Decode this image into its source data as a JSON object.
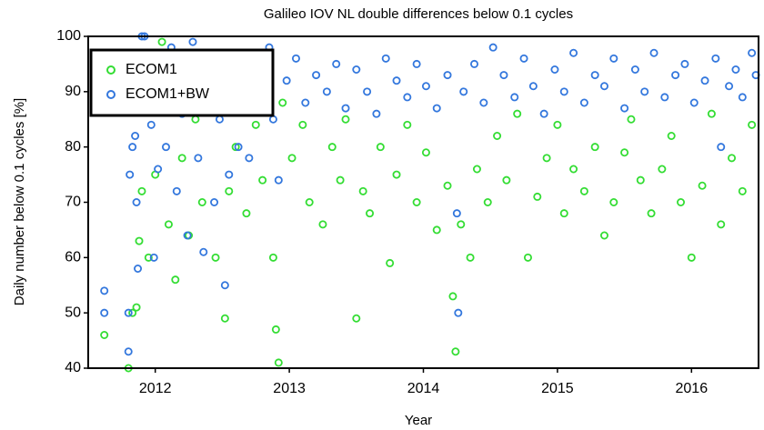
{
  "chart_data": {
    "type": "scatter",
    "title": "Galileo IOV NL double differences below 0.1 cycles",
    "x_label": "Year",
    "y_label": "Daily number below 0.1 cycles [%]",
    "xlim": [
      2012,
      2017
    ],
    "xticks": [
      {
        "value": 2012.5,
        "label": "2012"
      },
      {
        "value": 2013.5,
        "label": "2013"
      },
      {
        "value": 2014.5,
        "label": "2014"
      },
      {
        "value": 2015.5,
        "label": "2015"
      },
      {
        "value": 2016.5,
        "label": "2016"
      }
    ],
    "ylim": [
      40,
      100
    ],
    "yticks": [
      40,
      50,
      60,
      70,
      80,
      90,
      100
    ],
    "grid": false,
    "legend": "top-left",
    "series": [
      {
        "name": "ECOM1",
        "color": "#33dd33",
        "x": [
          2012.12,
          2012.3,
          2012.33,
          2012.36,
          2012.38,
          2012.4,
          2012.45,
          2012.5,
          2012.55,
          2012.6,
          2012.65,
          2012.7,
          2012.75,
          2012.8,
          2012.85,
          2012.95,
          2013.02,
          2013.05,
          2013.1,
          2013.18,
          2013.25,
          2013.3,
          2013.38,
          2013.4,
          2013.42,
          2013.45,
          2013.52,
          2013.6,
          2013.65,
          2013.75,
          2013.82,
          2013.88,
          2013.92,
          2014.0,
          2014.05,
          2014.1,
          2014.18,
          2014.25,
          2014.3,
          2014.38,
          2014.45,
          2014.52,
          2014.6,
          2014.68,
          2014.72,
          2014.74,
          2014.78,
          2014.85,
          2014.9,
          2014.98,
          2015.05,
          2015.12,
          2015.2,
          2015.28,
          2015.35,
          2015.42,
          2015.5,
          2015.55,
          2015.62,
          2015.7,
          2015.78,
          2015.85,
          2015.92,
          2016.0,
          2016.05,
          2016.12,
          2016.2,
          2016.28,
          2016.35,
          2016.42,
          2016.5,
          2016.58,
          2016.65,
          2016.72,
          2016.8,
          2016.88,
          2016.95
        ],
        "values": [
          46,
          40,
          50,
          51,
          63,
          72,
          60,
          75,
          99,
          66,
          56,
          78,
          64,
          85,
          70,
          60,
          49,
          72,
          80,
          68,
          84,
          74,
          60,
          47,
          41,
          88,
          78,
          84,
          70,
          66,
          80,
          74,
          85,
          49,
          72,
          68,
          80,
          59,
          75,
          84,
          70,
          79,
          65,
          73,
          53,
          43,
          66,
          60,
          76,
          70,
          82,
          74,
          86,
          60,
          71,
          78,
          84,
          68,
          76,
          72,
          80,
          64,
          70,
          79,
          85,
          74,
          68,
          76,
          82,
          70,
          60,
          73,
          86,
          66,
          78,
          72,
          84
        ]
      },
      {
        "name": "ECOM1+BW",
        "color": "#3377dd",
        "x": [
          2012.12,
          2012.12,
          2012.3,
          2012.3,
          2012.31,
          2012.33,
          2012.35,
          2012.36,
          2012.37,
          2012.4,
          2012.42,
          2012.44,
          2012.45,
          2012.47,
          2012.49,
          2012.52,
          2012.55,
          2012.58,
          2012.62,
          2012.66,
          2012.7,
          2012.74,
          2012.78,
          2012.82,
          2012.86,
          2012.9,
          2012.94,
          2012.98,
          2013.02,
          2013.05,
          2013.08,
          2013.12,
          2013.16,
          2013.2,
          2013.25,
          2013.3,
          2013.35,
          2013.38,
          2013.42,
          2013.48,
          2013.55,
          2013.62,
          2013.7,
          2013.78,
          2013.85,
          2013.92,
          2014.0,
          2014.08,
          2014.15,
          2014.22,
          2014.3,
          2014.38,
          2014.45,
          2014.52,
          2014.6,
          2014.68,
          2014.75,
          2014.76,
          2014.8,
          2014.88,
          2014.95,
          2015.02,
          2015.1,
          2015.18,
          2015.25,
          2015.32,
          2015.4,
          2015.48,
          2015.55,
          2015.62,
          2015.7,
          2015.78,
          2015.85,
          2015.92,
          2016.0,
          2016.08,
          2016.15,
          2016.22,
          2016.3,
          2016.38,
          2016.45,
          2016.52,
          2016.6,
          2016.68,
          2016.72,
          2016.78,
          2016.83,
          2016.88,
          2016.95,
          2016.98
        ],
        "values": [
          54,
          50,
          43,
          50,
          75,
          80,
          82,
          70,
          58,
          100,
          100,
          96,
          88,
          84,
          60,
          76,
          92,
          80,
          98,
          72,
          86,
          64,
          99,
          78,
          61,
          93,
          70,
          85,
          55,
          75,
          90,
          80,
          94,
          78,
          89,
          95,
          98,
          85,
          74,
          92,
          96,
          88,
          93,
          90,
          95,
          87,
          94,
          90,
          86,
          96,
          92,
          89,
          95,
          91,
          87,
          93,
          68,
          50,
          90,
          95,
          88,
          98,
          93,
          89,
          96,
          91,
          86,
          94,
          90,
          97,
          88,
          93,
          91,
          96,
          87,
          94,
          90,
          97,
          89,
          93,
          95,
          88,
          92,
          96,
          80,
          91,
          94,
          89,
          97,
          93
        ]
      }
    ]
  }
}
